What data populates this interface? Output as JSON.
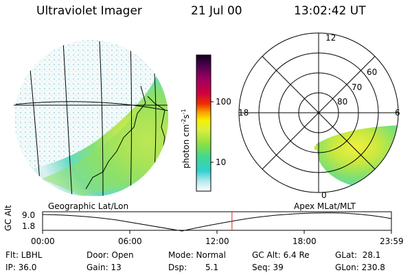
{
  "header": {
    "title": "Ultraviolet Imager",
    "date": "21 Jul 00",
    "time": "13:02:42 UT"
  },
  "colorbar": {
    "unit_label": "photon cm",
    "unit_sup1": "-2",
    "unit_mid": "s",
    "unit_sup2": "-1",
    "tick_labels": [
      "100",
      "10"
    ]
  },
  "geo_panel": {
    "label": "Geographic Lat/Lon"
  },
  "polar_panel": {
    "label": "Apex MLat/MLT",
    "mlt_labels": [
      "12",
      "18",
      "6",
      "0"
    ],
    "lat_labels": [
      "60",
      "70",
      "80"
    ]
  },
  "alt_plot": {
    "ylabel": "GC Alt",
    "y_ticks": [
      "9.0",
      "1.8"
    ],
    "x_ticks": [
      "00:00",
      "06:00",
      "12:00",
      "18:00",
      "23:59"
    ],
    "current_time_fraction": 0.543
  },
  "footer": {
    "flt": "Flt: LBHL",
    "ip": "IP: 36.0",
    "door": "Door: Open",
    "gain": "Gain: 13",
    "mode": "Mode: Normal",
    "dsp_label": "Dsp:",
    "dsp_value": "5.1",
    "gc_alt": "GC Alt: 6.4 Re",
    "seq": "Seq: 39",
    "glat": "GLat:  28.1",
    "glon": "GLon: 230.8"
  },
  "colors": {
    "cursor": "#e02020",
    "aurora_outer": "#40d8c8",
    "aurora_mid": "#a8e040",
    "aurora_core": "#f0f040"
  }
}
